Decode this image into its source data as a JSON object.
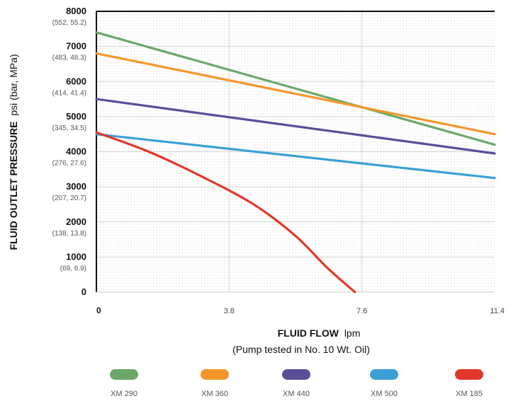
{
  "chart_data": {
    "type": "line",
    "xlabel_bold": "FLUID FLOW",
    "xlabel_unit": "lpm",
    "xlabel_note": "(Pump tested in No. 10 Wt. Oil)",
    "ylabel_bold": "FLUID OUTLET PRESSURE",
    "ylabel_unit": "psi (bar, MPa)",
    "xlim": [
      0,
      11.4
    ],
    "ylim": [
      0,
      8000
    ],
    "x_ticks": [
      {
        "value": 0,
        "label": "0"
      },
      {
        "value": 3.8,
        "label": "3.8"
      },
      {
        "value": 7.6,
        "label": "7.6"
      },
      {
        "value": 11.4,
        "label": "11.4"
      }
    ],
    "y_ticks": [
      {
        "value": 0,
        "label": "0",
        "sub": ""
      },
      {
        "value": 1000,
        "label": "1000",
        "sub": "(69, 6.9)"
      },
      {
        "value": 2000,
        "label": "2000",
        "sub": "(138, 13.8)"
      },
      {
        "value": 3000,
        "label": "3000",
        "sub": "(207, 20.7)"
      },
      {
        "value": 4000,
        "label": "4000",
        "sub": "(276, 27.6)"
      },
      {
        "value": 5000,
        "label": "5000",
        "sub": "(345, 34.5)"
      },
      {
        "value": 6000,
        "label": "6000",
        "sub": "(414, 41.4)"
      },
      {
        "value": 7000,
        "label": "7000",
        "sub": "(483, 48.3)"
      },
      {
        "value": 8000,
        "label": "8000",
        "sub": "(552, 55.2)"
      }
    ],
    "grid": true,
    "legend_position": "bottom",
    "series": [
      {
        "name": "XM 290",
        "color": "#6aa86a",
        "points": [
          [
            0,
            7400
          ],
          [
            11.4,
            4200
          ]
        ]
      },
      {
        "name": "XM 360",
        "color": "#f5962a",
        "points": [
          [
            0,
            6800
          ],
          [
            11.4,
            4500
          ]
        ]
      },
      {
        "name": "XM 440",
        "color": "#5a4e96",
        "points": [
          [
            0,
            5500
          ],
          [
            11.4,
            3950
          ]
        ]
      },
      {
        "name": "XM 500",
        "color": "#3aa0d6",
        "points": [
          [
            0,
            4500
          ],
          [
            11.4,
            3250
          ]
        ]
      },
      {
        "name": "XM 185",
        "color": "#e2372a",
        "points": [
          [
            0,
            4550
          ],
          [
            1.5,
            4000
          ],
          [
            3.0,
            3300
          ],
          [
            4.5,
            2500
          ],
          [
            5.7,
            1600
          ],
          [
            6.6,
            700
          ],
          [
            7.4,
            0
          ]
        ]
      }
    ]
  }
}
